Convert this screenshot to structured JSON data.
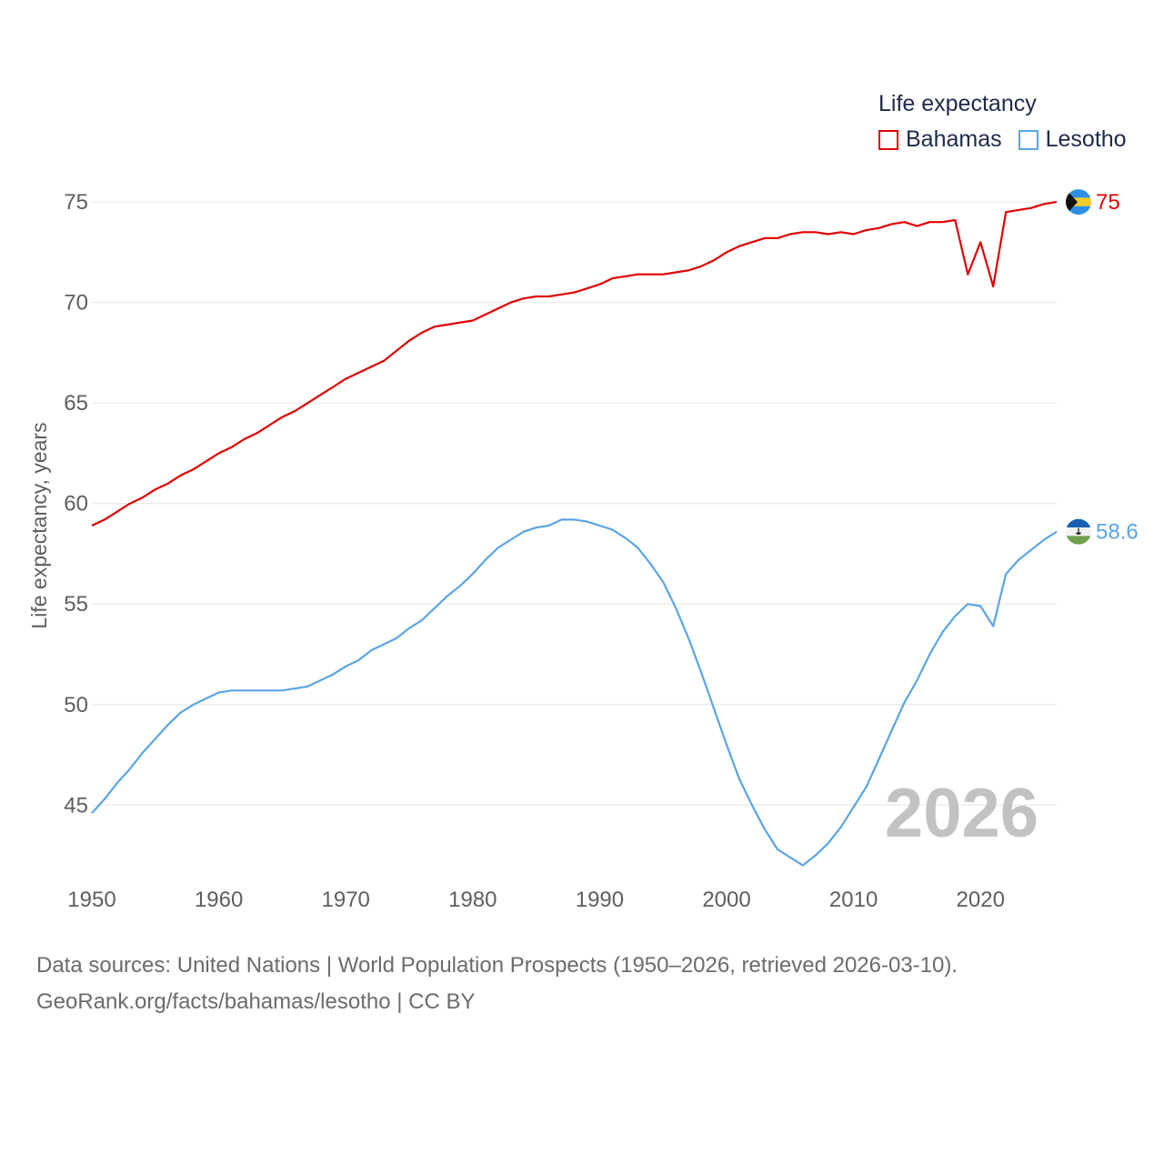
{
  "legend": {
    "title": "Life expectancy",
    "items": [
      {
        "label": "Bahamas",
        "color": "#e00000"
      },
      {
        "label": "Lesotho",
        "color": "#5aa5e6"
      }
    ]
  },
  "current_year": "2026",
  "source": {
    "line1": "Data sources: United Nations | World Population Prospects (1950–2026, retrieved 2026-03-10).",
    "line2": "GeoRank.org/facts/bahamas/lesotho | CC BY"
  },
  "chart_data": {
    "type": "line",
    "title": "Life expectancy",
    "xlabel": "",
    "ylabel": "Life expectancy, years",
    "xlim": [
      1950,
      2026
    ],
    "ylim": [
      42.3,
      76
    ],
    "x_ticks": [
      1950,
      1960,
      1970,
      1980,
      1990,
      2000,
      2010,
      2020
    ],
    "y_ticks": [
      45,
      50,
      55,
      60,
      65,
      70,
      75
    ],
    "grid": true,
    "x": [
      1950,
      1951,
      1952,
      1953,
      1954,
      1955,
      1956,
      1957,
      1958,
      1959,
      1960,
      1961,
      1962,
      1963,
      1964,
      1965,
      1966,
      1967,
      1968,
      1969,
      1970,
      1971,
      1972,
      1973,
      1974,
      1975,
      1976,
      1977,
      1978,
      1979,
      1980,
      1981,
      1982,
      1983,
      1984,
      1985,
      1986,
      1987,
      1988,
      1989,
      1990,
      1991,
      1992,
      1993,
      1994,
      1995,
      1996,
      1997,
      1998,
      1999,
      2000,
      2001,
      2002,
      2003,
      2004,
      2005,
      2006,
      2007,
      2008,
      2009,
      2010,
      2011,
      2012,
      2013,
      2014,
      2015,
      2016,
      2017,
      2018,
      2019,
      2020,
      2021,
      2022,
      2023,
      2024,
      2025,
      2026
    ],
    "series": [
      {
        "name": "Bahamas",
        "color": "#e00000",
        "end_label": "75",
        "values": [
          58.9,
          59.2,
          59.6,
          60.0,
          60.3,
          60.7,
          61.0,
          61.4,
          61.7,
          62.1,
          62.5,
          62.8,
          63.2,
          63.5,
          63.9,
          64.3,
          64.6,
          65.0,
          65.4,
          65.8,
          66.2,
          66.5,
          66.8,
          67.1,
          67.6,
          68.1,
          68.5,
          68.8,
          68.9,
          69.0,
          69.1,
          69.4,
          69.7,
          70.0,
          70.2,
          70.3,
          70.3,
          70.4,
          70.5,
          70.7,
          70.9,
          71.2,
          71.3,
          71.4,
          71.4,
          71.4,
          71.5,
          71.6,
          71.8,
          72.1,
          72.5,
          72.8,
          73.0,
          73.2,
          73.2,
          73.4,
          73.5,
          73.5,
          73.4,
          73.5,
          73.4,
          73.6,
          73.7,
          73.9,
          74.0,
          73.8,
          74.0,
          74.0,
          74.1,
          71.4,
          73.0,
          70.8,
          74.5,
          74.6,
          74.7,
          74.9,
          75.0
        ]
      },
      {
        "name": "Lesotho",
        "color": "#5aa5e6",
        "end_label": "58.6",
        "values": [
          44.6,
          45.3,
          46.1,
          46.8,
          47.6,
          48.3,
          49.0,
          49.6,
          50.0,
          50.3,
          50.6,
          50.7,
          50.7,
          50.7,
          50.7,
          50.7,
          50.8,
          50.9,
          51.2,
          51.5,
          51.9,
          52.2,
          52.7,
          53.0,
          53.3,
          53.8,
          54.2,
          54.8,
          55.4,
          55.9,
          56.5,
          57.2,
          57.8,
          58.2,
          58.6,
          58.8,
          58.9,
          59.2,
          59.2,
          59.1,
          58.9,
          58.7,
          58.3,
          57.8,
          57.0,
          56.1,
          54.8,
          53.3,
          51.6,
          49.8,
          48.0,
          46.3,
          45.0,
          43.8,
          42.8,
          42.4,
          42.0,
          42.5,
          43.1,
          43.9,
          44.9,
          45.9,
          47.3,
          48.7,
          50.1,
          51.2,
          52.5,
          53.6,
          54.4,
          55.0,
          54.9,
          53.9,
          56.5,
          57.2,
          57.7,
          58.2,
          58.6
        ]
      }
    ]
  }
}
